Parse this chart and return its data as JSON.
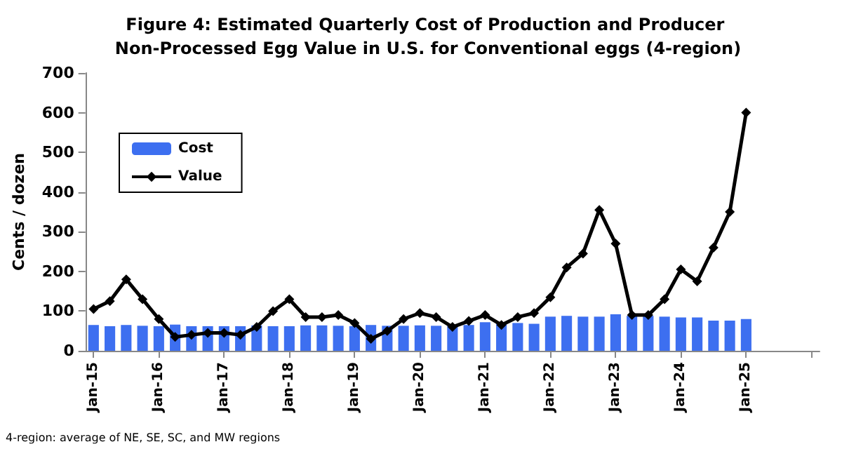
{
  "chart_data": {
    "type": "bar",
    "title": "Figure 4: Estimated Quarterly Cost of Production and Producer Non-Processed Egg Value in U.S. for Conventional eggs (4-region)",
    "ylabel": "Cents / dozen",
    "categories": [
      "Jan-15",
      null,
      null,
      null,
      "Jan-16",
      null,
      null,
      null,
      "Jan-17",
      null,
      null,
      null,
      "Jan-18",
      null,
      null,
      null,
      "Jan-19",
      null,
      null,
      null,
      "Jan-20",
      null,
      null,
      null,
      "Jan-21",
      null,
      null,
      null,
      "Jan-22",
      null,
      null,
      null,
      "Jan-23",
      null,
      null,
      null,
      "Jan-24",
      null,
      null,
      null,
      "Jan-25",
      null,
      null,
      null,
      null
    ],
    "series": [
      {
        "name": "Cost",
        "color": "#3d6ff0",
        "values": [
          65,
          62,
          65,
          63,
          62,
          66,
          62,
          62,
          62,
          62,
          64,
          62,
          62,
          64,
          64,
          63,
          62,
          65,
          63,
          63,
          64,
          63,
          63,
          65,
          72,
          70,
          70,
          68,
          86,
          88,
          86,
          86,
          92,
          88,
          88,
          86,
          84,
          84,
          76,
          76,
          80,
          null,
          null,
          null,
          null
        ]
      },
      {
        "name": "Value",
        "type": "line",
        "color": "#000000",
        "marker": "diamond",
        "values": [
          105,
          125,
          180,
          130,
          80,
          35,
          40,
          45,
          45,
          40,
          60,
          100,
          130,
          85,
          85,
          90,
          70,
          30,
          50,
          80,
          95,
          85,
          60,
          75,
          90,
          65,
          85,
          95,
          135,
          210,
          245,
          355,
          270,
          90,
          90,
          130,
          205,
          175,
          260,
          350,
          600,
          null,
          null,
          null,
          null
        ]
      }
    ],
    "ylim": [
      0,
      700
    ],
    "yticks": [
      0,
      100,
      200,
      300,
      400,
      500,
      600,
      700
    ],
    "grid": false,
    "legend": "top left",
    "annotations": [
      "4-region: average of NE, SE, SC, and MW regions"
    ]
  }
}
